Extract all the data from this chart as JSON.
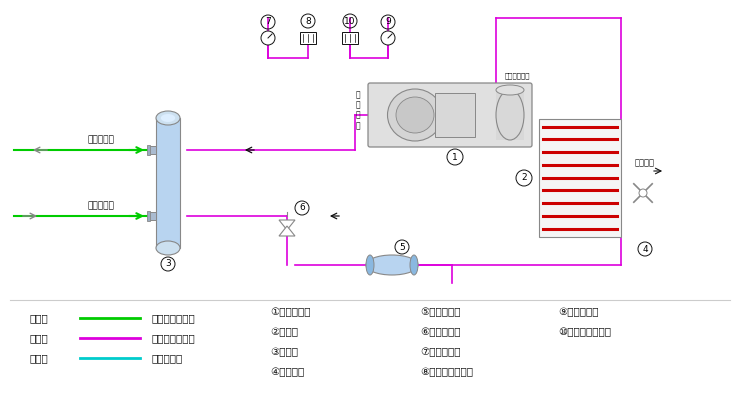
{
  "colors": {
    "green": "#00cc00",
    "magenta": "#dd00dd",
    "cyan": "#00cccc",
    "red": "#cc0000",
    "blue_light": "#b8d4f0",
    "blue_mid": "#8ab8e0",
    "gray": "#888888",
    "gray_light": "#cccccc",
    "black": "#111111",
    "white": "#ffffff",
    "bg": "#f8f8f8"
  },
  "legend": [
    {
      "label": "绿色线",
      "color": "#00cc00",
      "text": "载冷剂循环回路"
    },
    {
      "label": "红色线",
      "color": "#dd00dd",
      "text": "制冷剂循环回路"
    },
    {
      "label": "蓝色线",
      "color": "#00cccc",
      "text": "水循环回路"
    }
  ],
  "col1": [
    "①螺杆压缩机",
    "②冷凝器",
    "③蒸发器",
    "④冷却风扇"
  ],
  "col2": [
    "⑤干燥过滤器",
    "⑥供液膨胀阀",
    "⑦低压压力表",
    "⑧低压压力控制器"
  ],
  "col3": [
    "⑨高压压力表",
    "⑩高压压力控制器"
  ]
}
